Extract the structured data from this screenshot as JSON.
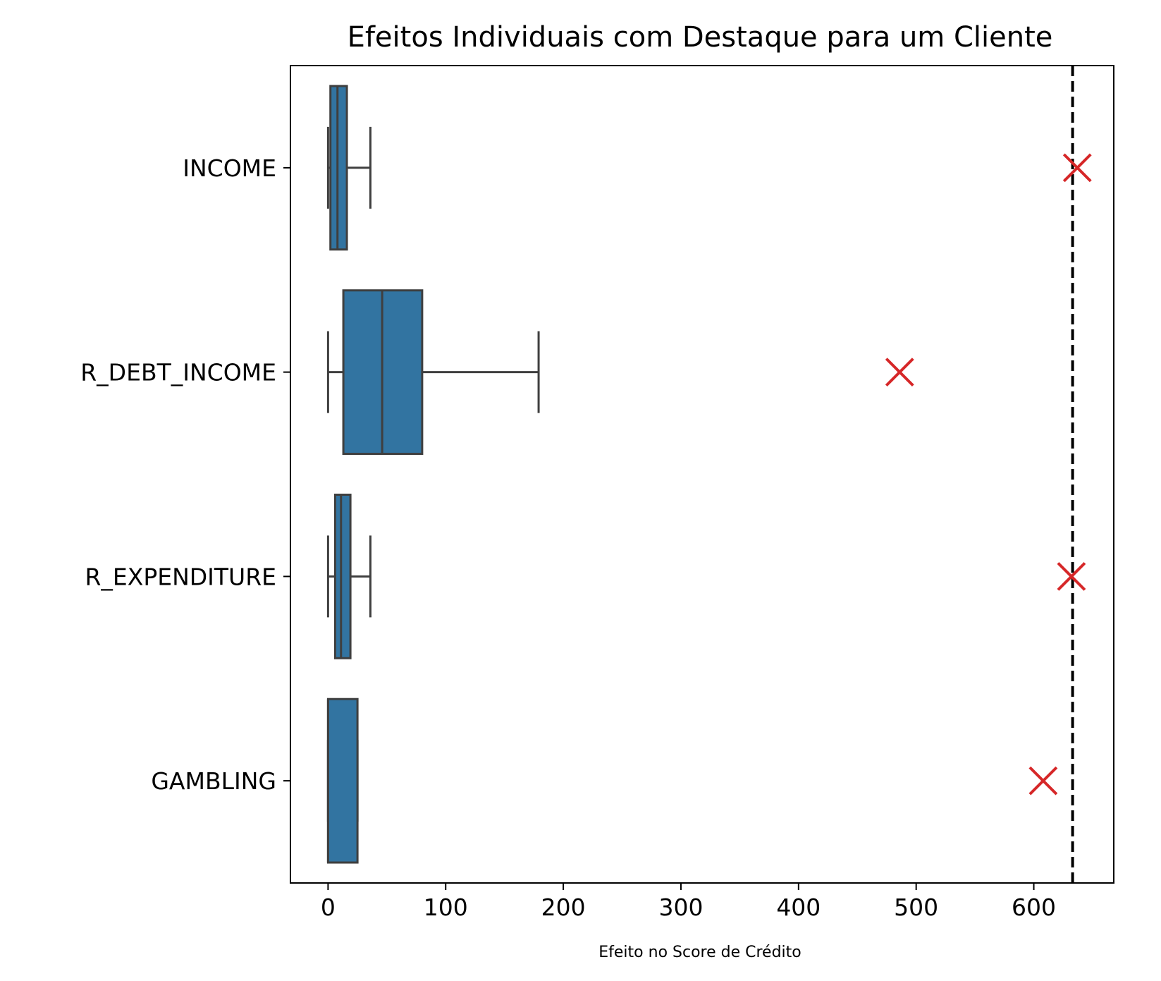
{
  "chart_data": {
    "type": "boxplot",
    "orientation": "horizontal",
    "title": "Efeitos Individuais com Destaque para um Cliente",
    "xlabel": "Efeito no Score de Crédito",
    "ylabel": "",
    "xlim": [
      -32,
      668
    ],
    "x_ticks": [
      0,
      100,
      200,
      300,
      400,
      500,
      600
    ],
    "categories": [
      "INCOME",
      "R_DEBT_INCOME",
      "R_EXPENDITURE",
      "GAMBLING"
    ],
    "boxes": [
      {
        "category": "INCOME",
        "whisker_low": 0,
        "q1": 2,
        "median": 8,
        "q3": 16,
        "whisker_high": 36
      },
      {
        "category": "R_DEBT_INCOME",
        "whisker_low": 0,
        "q1": 13,
        "median": 46,
        "q3": 80,
        "whisker_high": 179
      },
      {
        "category": "R_EXPENDITURE",
        "whisker_low": 0,
        "q1": 6,
        "median": 11,
        "q3": 19,
        "whisker_high": 36
      },
      {
        "category": "GAMBLING",
        "whisker_low": 0,
        "q1": 0,
        "median": 0,
        "q3": 25,
        "whisker_high": 25
      }
    ],
    "highlight_points": [
      {
        "category": "INCOME",
        "value": 637
      },
      {
        "category": "R_DEBT_INCOME",
        "value": 486
      },
      {
        "category": "R_EXPENDITURE",
        "value": 632
      },
      {
        "category": "GAMBLING",
        "value": 608
      }
    ],
    "reference_line": {
      "value": 633,
      "style": "dashed"
    },
    "grid": false,
    "colors": {
      "box_fill": "#3274a1",
      "box_edge": "#3f3f3f",
      "marker": "#d62728",
      "reference_line": "#000000",
      "axes": "#000000"
    }
  }
}
